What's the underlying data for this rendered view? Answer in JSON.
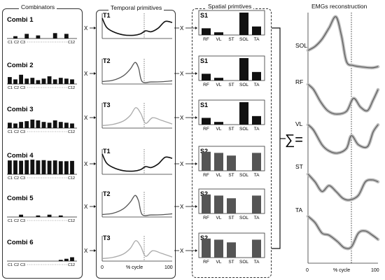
{
  "panels": {
    "combinators": "Combinators",
    "temporal": "Temporal primitives",
    "spatial": "Spatial primtives",
    "emg": "EMGs reconstruction"
  },
  "operators": {
    "multiply": "X",
    "sum": "∑="
  },
  "combinator_axis": {
    "c1": "C1",
    "c2": "C2",
    "c3": "C3",
    "c12": "C12"
  },
  "combinators": [
    {
      "name": "Combi 1",
      "values": [
        0,
        0.15,
        0,
        0.3,
        0,
        0.2,
        0,
        0,
        0.35,
        0,
        0.3,
        0
      ]
    },
    {
      "name": "Combi 2",
      "values": [
        0.45,
        0.3,
        0.6,
        0.35,
        0.4,
        0.25,
        0.35,
        0.5,
        0.3,
        0.4,
        0.35,
        0.3
      ]
    },
    {
      "name": "Combi 3",
      "values": [
        0.35,
        0.3,
        0.4,
        0.45,
        0.55,
        0.5,
        0.4,
        0.35,
        0.5,
        0.4,
        0.35,
        0.3
      ]
    },
    {
      "name": "Combi 4",
      "values": [
        0.9,
        0.9,
        0.88,
        0.92,
        0.95,
        0.9,
        0.92,
        0.88,
        0.9,
        0.85,
        0.85,
        0.87
      ]
    },
    {
      "name": "Combi 5",
      "values": [
        0,
        0,
        0.15,
        0,
        0,
        0.1,
        0,
        0.15,
        0,
        0.1,
        0,
        0
      ]
    },
    {
      "name": "Combi 6",
      "values": [
        0,
        0,
        0,
        0,
        0,
        0,
        0,
        0,
        0,
        0.08,
        0.15,
        0.25
      ]
    }
  ],
  "temporal": {
    "rows": [
      "T1",
      "T2",
      "T3",
      "T1",
      "T2",
      "T3"
    ],
    "x_ticks": [
      "0",
      "100"
    ],
    "xlabel": "% cycle"
  },
  "spatial": {
    "rows": [
      "S1",
      "S1",
      "S1",
      "S2",
      "S2",
      "S2"
    ],
    "muscles": [
      "RF",
      "VL",
      "ST",
      "SOL",
      "TA"
    ],
    "S1": [
      0.3,
      0.12,
      0,
      1.0,
      0.38
    ],
    "S2": [
      0.85,
      0.8,
      0.68,
      0,
      0.8
    ]
  },
  "emg": {
    "muscles": [
      "SOL",
      "RF",
      "VL",
      "ST",
      "TA"
    ],
    "x_ticks": [
      "0",
      "100"
    ],
    "xlabel": "% cycle"
  },
  "colors": {
    "dark": "#111111",
    "gray": "#555555",
    "light": "#aaaaaa",
    "spatial_s2": "#555555"
  }
}
